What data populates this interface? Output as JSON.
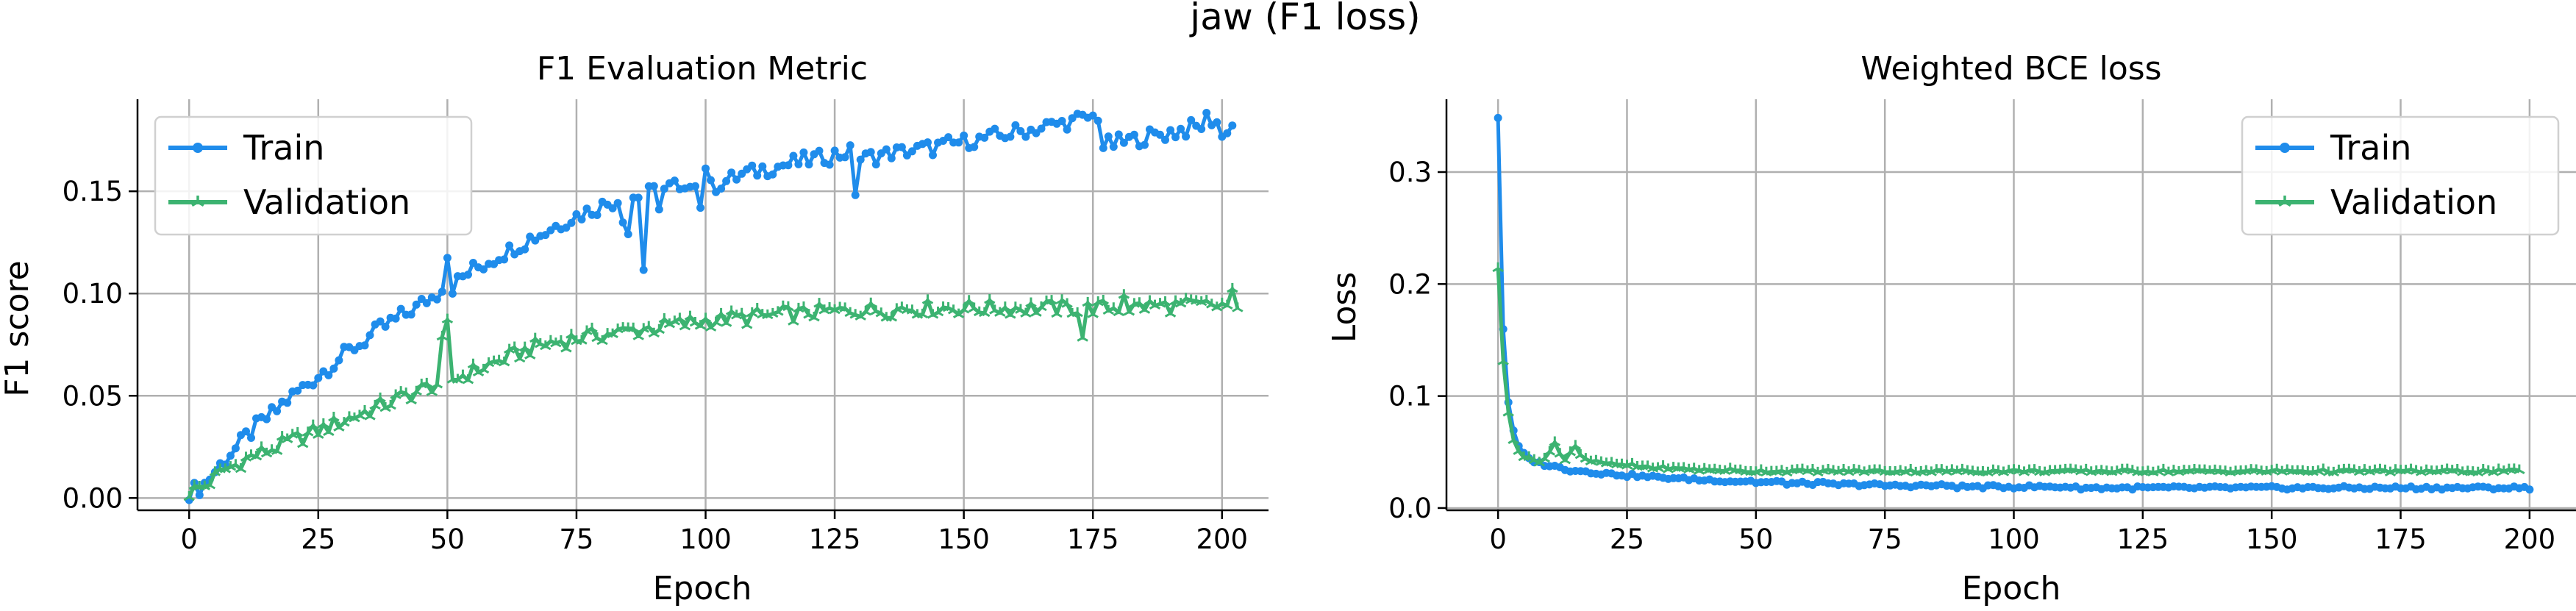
{
  "figure": {
    "suptitle": "jaw (F1 loss)"
  },
  "colors": {
    "train": "#1f8ceb",
    "validation": "#3cb371"
  },
  "chart_data": [
    {
      "type": "line",
      "title": "F1 Evaluation Metric",
      "xlabel": "Epoch",
      "ylabel": "F1 score",
      "xlim": [
        -10,
        209
      ],
      "ylim": [
        -0.006,
        0.195
      ],
      "xticks": [
        0,
        25,
        50,
        75,
        100,
        125,
        150,
        175,
        200
      ],
      "yticks": [
        0.0,
        0.05,
        0.1,
        0.15
      ],
      "ytick_labels": [
        "0.00",
        "0.05",
        "0.10",
        "0.15"
      ],
      "grid": true,
      "legend": "upper left",
      "series": [
        {
          "name": "Train",
          "marker": "circle",
          "x_start": 0,
          "x_step": 1,
          "values": [
            0.003,
            0.004,
            0.005,
            0.007,
            0.01,
            0.013,
            0.016,
            0.019,
            0.022,
            0.024,
            0.027,
            0.03,
            0.032,
            0.035,
            0.037,
            0.039,
            0.041,
            0.043,
            0.046,
            0.048,
            0.05,
            0.052,
            0.054,
            0.056,
            0.058,
            0.06,
            0.062,
            0.064,
            0.066,
            0.068,
            0.07,
            0.072,
            0.074,
            0.075,
            0.077,
            0.079,
            0.081,
            0.083,
            0.084,
            0.086,
            0.087,
            0.089,
            0.09,
            0.092,
            0.093,
            0.095,
            0.097,
            0.098,
            0.1,
            0.104,
            0.119,
            0.103,
            0.106,
            0.108,
            0.11,
            0.112,
            0.113,
            0.114,
            0.116,
            0.117,
            0.119,
            0.12,
            0.121,
            0.123,
            0.124,
            0.125,
            0.127,
            0.128,
            0.129,
            0.13,
            0.132,
            0.133,
            0.134,
            0.136,
            0.137,
            0.138,
            0.139,
            0.14,
            0.141,
            0.142,
            0.143,
            0.144,
            0.145,
            0.146,
            0.138,
            0.13,
            0.147,
            0.148,
            0.112,
            0.149,
            0.15,
            0.144,
            0.151,
            0.152,
            0.153,
            0.149,
            0.148,
            0.155,
            0.156,
            0.142,
            0.163,
            0.152,
            0.153,
            0.154,
            0.155,
            0.156,
            0.157,
            0.158,
            0.159,
            0.159,
            0.16,
            0.161,
            0.161,
            0.162,
            0.162,
            0.163,
            0.163,
            0.164,
            0.164,
            0.165,
            0.165,
            0.166,
            0.166,
            0.167,
            0.167,
            0.168,
            0.168,
            0.169,
            0.169,
            0.15,
            0.166,
            0.166,
            0.167,
            0.167,
            0.168,
            0.168,
            0.169,
            0.169,
            0.169,
            0.17,
            0.17,
            0.17,
            0.171,
            0.171,
            0.171,
            0.172,
            0.172,
            0.173,
            0.173,
            0.174,
            0.174,
            0.175,
            0.175,
            0.175,
            0.176,
            0.176,
            0.177,
            0.177,
            0.178,
            0.178,
            0.179,
            0.179,
            0.18,
            0.18,
            0.181,
            0.181,
            0.182,
            0.182,
            0.183,
            0.183,
            0.184,
            0.184,
            0.185,
            0.185,
            0.186,
            0.186,
            0.187,
            0.172,
            0.173,
            0.173,
            0.174,
            0.174,
            0.175,
            0.175,
            0.176,
            0.176,
            0.177,
            0.177,
            0.178,
            0.178,
            0.179,
            0.179,
            0.18,
            0.18,
            0.181,
            0.181,
            0.182,
            0.186,
            0.185,
            0.184,
            0.176,
            0.181,
            0.182
          ],
          "noise": 0.004
        },
        {
          "name": "Validation",
          "marker": "tri",
          "x_start": 0,
          "x_step": 1,
          "values": [
            0.003,
            0.004,
            0.005,
            0.006,
            0.008,
            0.01,
            0.012,
            0.014,
            0.015,
            0.016,
            0.018,
            0.019,
            0.02,
            0.021,
            0.022,
            0.023,
            0.024,
            0.025,
            0.026,
            0.027,
            0.028,
            0.029,
            0.03,
            0.031,
            0.032,
            0.033,
            0.034,
            0.035,
            0.036,
            0.037,
            0.038,
            0.039,
            0.04,
            0.041,
            0.042,
            0.043,
            0.044,
            0.045,
            0.046,
            0.047,
            0.048,
            0.049,
            0.05,
            0.051,
            0.052,
            0.053,
            0.054,
            0.055,
            0.056,
            0.075,
            0.084,
            0.058,
            0.059,
            0.06,
            0.061,
            0.062,
            0.063,
            0.064,
            0.065,
            0.066,
            0.067,
            0.068,
            0.069,
            0.07,
            0.071,
            0.072,
            0.073,
            0.074,
            0.075,
            0.075,
            0.076,
            0.076,
            0.077,
            0.077,
            0.078,
            0.078,
            0.079,
            0.079,
            0.079,
            0.08,
            0.08,
            0.08,
            0.081,
            0.081,
            0.081,
            0.082,
            0.082,
            0.082,
            0.083,
            0.083,
            0.083,
            0.084,
            0.084,
            0.084,
            0.085,
            0.085,
            0.085,
            0.086,
            0.086,
            0.086,
            0.087,
            0.087,
            0.087,
            0.087,
            0.088,
            0.088,
            0.088,
            0.088,
            0.088,
            0.089,
            0.089,
            0.089,
            0.089,
            0.089,
            0.09,
            0.09,
            0.09,
            0.09,
            0.09,
            0.09,
            0.091,
            0.091,
            0.091,
            0.091,
            0.091,
            0.091,
            0.091,
            0.092,
            0.092,
            0.092,
            0.092,
            0.092,
            0.092,
            0.092,
            0.092,
            0.092,
            0.092,
            0.092,
            0.093,
            0.093,
            0.093,
            0.093,
            0.093,
            0.093,
            0.093,
            0.093,
            0.093,
            0.093,
            0.093,
            0.093,
            0.093,
            0.093,
            0.093,
            0.093,
            0.093,
            0.093,
            0.093,
            0.093,
            0.093,
            0.093,
            0.093,
            0.093,
            0.093,
            0.093,
            0.093,
            0.093,
            0.093,
            0.093,
            0.093,
            0.093,
            0.093,
            0.093,
            0.093,
            0.079,
            0.093,
            0.093,
            0.093,
            0.093,
            0.093,
            0.093,
            0.093,
            0.101,
            0.093,
            0.093,
            0.094,
            0.094,
            0.094,
            0.094,
            0.094,
            0.094,
            0.094,
            0.094,
            0.094,
            0.094,
            0.094,
            0.094,
            0.094,
            0.094,
            0.094,
            0.094,
            0.094,
            0.094,
            0.099,
            0.091
          ],
          "noise": 0.004
        }
      ]
    },
    {
      "type": "line",
      "title": "Weighted BCE loss",
      "xlabel": "Epoch",
      "ylabel": "Loss",
      "xlim": [
        -10,
        209
      ],
      "ylim": [
        -0.002,
        0.365
      ],
      "xticks": [
        0,
        25,
        50,
        75,
        100,
        125,
        150,
        175,
        200
      ],
      "yticks": [
        0.0,
        0.1,
        0.2,
        0.3
      ],
      "ytick_labels": [
        "0.0",
        "0.1",
        "0.2",
        "0.3"
      ],
      "grid": true,
      "legend": "upper right",
      "series": [
        {
          "name": "Train",
          "marker": "circle",
          "x_start": 0,
          "x_step": 1,
          "values": [
            0.349,
            0.16,
            0.095,
            0.068,
            0.055,
            0.048,
            0.044,
            0.042,
            0.04,
            0.039,
            0.038,
            0.037,
            0.036,
            0.035,
            0.034,
            0.034,
            0.033,
            0.033,
            0.032,
            0.032,
            0.031,
            0.031,
            0.03,
            0.03,
            0.03,
            0.029,
            0.029,
            0.029,
            0.028,
            0.028,
            0.028,
            0.027,
            0.027,
            0.027,
            0.027,
            0.026,
            0.026,
            0.026,
            0.026,
            0.025,
            0.025,
            0.025,
            0.025,
            0.025,
            0.024,
            0.024,
            0.024,
            0.024,
            0.024,
            0.024,
            0.023,
            0.023,
            0.023,
            0.023,
            0.023,
            0.023,
            0.022,
            0.022,
            0.022,
            0.022,
            0.022,
            0.022,
            0.022,
            0.022,
            0.021,
            0.021,
            0.021,
            0.021,
            0.021,
            0.021,
            0.021,
            0.021,
            0.021,
            0.021,
            0.02,
            0.02,
            0.02,
            0.02,
            0.02,
            0.02,
            0.02,
            0.02,
            0.02,
            0.02,
            0.02,
            0.02,
            0.02,
            0.02,
            0.02,
            0.019,
            0.019,
            0.019,
            0.019,
            0.019,
            0.019,
            0.019,
            0.019,
            0.019,
            0.019,
            0.019,
            0.019,
            0.019,
            0.019,
            0.019,
            0.019,
            0.019,
            0.019,
            0.019,
            0.019,
            0.019,
            0.019,
            0.019,
            0.018,
            0.018,
            0.018,
            0.018,
            0.018,
            0.018,
            0.018,
            0.018,
            0.018,
            0.018,
            0.018,
            0.018,
            0.018,
            0.018,
            0.018,
            0.018,
            0.018,
            0.018,
            0.018,
            0.018,
            0.018,
            0.018,
            0.018,
            0.018,
            0.018,
            0.018,
            0.018,
            0.018,
            0.018,
            0.018,
            0.018,
            0.018,
            0.018,
            0.018,
            0.018,
            0.018,
            0.018,
            0.018,
            0.018,
            0.018,
            0.018,
            0.018,
            0.018,
            0.018,
            0.018,
            0.018,
            0.018,
            0.018,
            0.018,
            0.018,
            0.018,
            0.018,
            0.018,
            0.018,
            0.018,
            0.018,
            0.018,
            0.018,
            0.018,
            0.018,
            0.018,
            0.018,
            0.018,
            0.018,
            0.018,
            0.018,
            0.018,
            0.018,
            0.018,
            0.018,
            0.018,
            0.018,
            0.018,
            0.018,
            0.018,
            0.018,
            0.018,
            0.018,
            0.018,
            0.018,
            0.018,
            0.018,
            0.018,
            0.018,
            0.018,
            0.018,
            0.018,
            0.018,
            0.018
          ],
          "noise": 0.0015
        },
        {
          "name": "Validation",
          "marker": "tri",
          "x_start": 0,
          "x_step": 1,
          "values": [
            0.215,
            0.13,
            0.085,
            0.062,
            0.052,
            0.046,
            0.044,
            0.043,
            0.042,
            0.044,
            0.05,
            0.058,
            0.048,
            0.044,
            0.05,
            0.056,
            0.048,
            0.044,
            0.042,
            0.041,
            0.04,
            0.04,
            0.039,
            0.039,
            0.038,
            0.038,
            0.038,
            0.037,
            0.037,
            0.037,
            0.036,
            0.036,
            0.036,
            0.036,
            0.035,
            0.035,
            0.035,
            0.035,
            0.035,
            0.034,
            0.034,
            0.034,
            0.034,
            0.034,
            0.034,
            0.034,
            0.033,
            0.033,
            0.033,
            0.033,
            0.033,
            0.033,
            0.033,
            0.033,
            0.033,
            0.033,
            0.033,
            0.033,
            0.033,
            0.033,
            0.033,
            0.033,
            0.033,
            0.033,
            0.033,
            0.033,
            0.033,
            0.033,
            0.033,
            0.033,
            0.033,
            0.033,
            0.033,
            0.033,
            0.033,
            0.033,
            0.033,
            0.033,
            0.033,
            0.033,
            0.033,
            0.033,
            0.033,
            0.033,
            0.033,
            0.033,
            0.033,
            0.033,
            0.033,
            0.033,
            0.033,
            0.033,
            0.033,
            0.033,
            0.033,
            0.033,
            0.033,
            0.033,
            0.033,
            0.033,
            0.033,
            0.033,
            0.033,
            0.033,
            0.033,
            0.033,
            0.033,
            0.033,
            0.033,
            0.033,
            0.033,
            0.033,
            0.033,
            0.033,
            0.033,
            0.033,
            0.033,
            0.033,
            0.033,
            0.033,
            0.033,
            0.033,
            0.033,
            0.033,
            0.033,
            0.033,
            0.033,
            0.033,
            0.033,
            0.033,
            0.033,
            0.033,
            0.033,
            0.033,
            0.033,
            0.033,
            0.033,
            0.033,
            0.033,
            0.033,
            0.033,
            0.033,
            0.033,
            0.033,
            0.033,
            0.033,
            0.033,
            0.033,
            0.033,
            0.033,
            0.033,
            0.033,
            0.033,
            0.033,
            0.033,
            0.033,
            0.033,
            0.033,
            0.033,
            0.033,
            0.033,
            0.033,
            0.033,
            0.033,
            0.033,
            0.033,
            0.033,
            0.033,
            0.033,
            0.033,
            0.033,
            0.033,
            0.033,
            0.033,
            0.033,
            0.033,
            0.033,
            0.033,
            0.033,
            0.033,
            0.033,
            0.033,
            0.033,
            0.033,
            0.033,
            0.033,
            0.033,
            0.033,
            0.033,
            0.033,
            0.033,
            0.033,
            0.033,
            0.033,
            0.033,
            0.033,
            0.033,
            0.033,
            0.033
          ],
          "noise": 0.0015
        }
      ]
    }
  ]
}
